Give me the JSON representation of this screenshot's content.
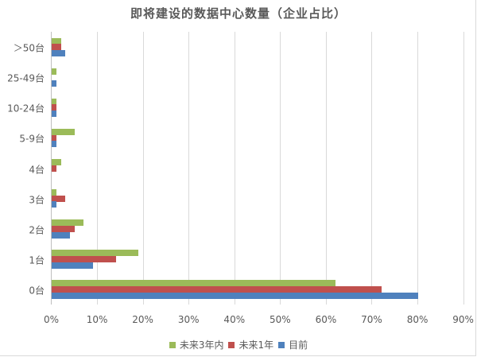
{
  "chart_data": {
    "type": "bar",
    "orientation": "horizontal",
    "title": "即将建设的数据中心数量（企业占比）",
    "xlabel": "",
    "ylabel": "",
    "xlim": [
      0,
      90
    ],
    "x_ticks": [
      "0%",
      "10%",
      "20%",
      "30%",
      "40%",
      "50%",
      "60%",
      "70%",
      "80%",
      "90%"
    ],
    "grid": true,
    "legend_position": "bottom",
    "categories": [
      ">50台",
      "25-49台",
      "10-24台",
      "5-9台",
      "4台",
      "3台",
      "2台",
      "1台",
      "0台"
    ],
    "series": [
      {
        "name": "未来3年内",
        "color": "#9bbb59",
        "values": [
          2,
          1,
          1,
          5,
          2,
          1,
          7,
          19,
          62
        ]
      },
      {
        "name": "未来1年",
        "color": "#c0504d",
        "values": [
          2,
          0,
          1,
          1,
          1,
          3,
          5,
          14,
          72
        ]
      },
      {
        "name": "目前",
        "color": "#4f81bd",
        "values": [
          3,
          1,
          1,
          1,
          0,
          1,
          4,
          9,
          80
        ]
      }
    ],
    "units": "%"
  },
  "title": "即将建设的数据中心数量（企业占比）",
  "y_labels": [
    "＞50台",
    "25-49台",
    "10-24台",
    "5-9台",
    "4台",
    "3台",
    "2台",
    "1台",
    "0台"
  ],
  "x_ticks": [
    "0%",
    "10%",
    "20%",
    "30%",
    "40%",
    "50%",
    "60%",
    "70%",
    "80%",
    "90%"
  ],
  "legend": [
    {
      "label": "未来3年内",
      "color": "#9bbb59"
    },
    {
      "label": "未来1年",
      "color": "#c0504d"
    },
    {
      "label": "目前",
      "color": "#4f81bd"
    }
  ]
}
